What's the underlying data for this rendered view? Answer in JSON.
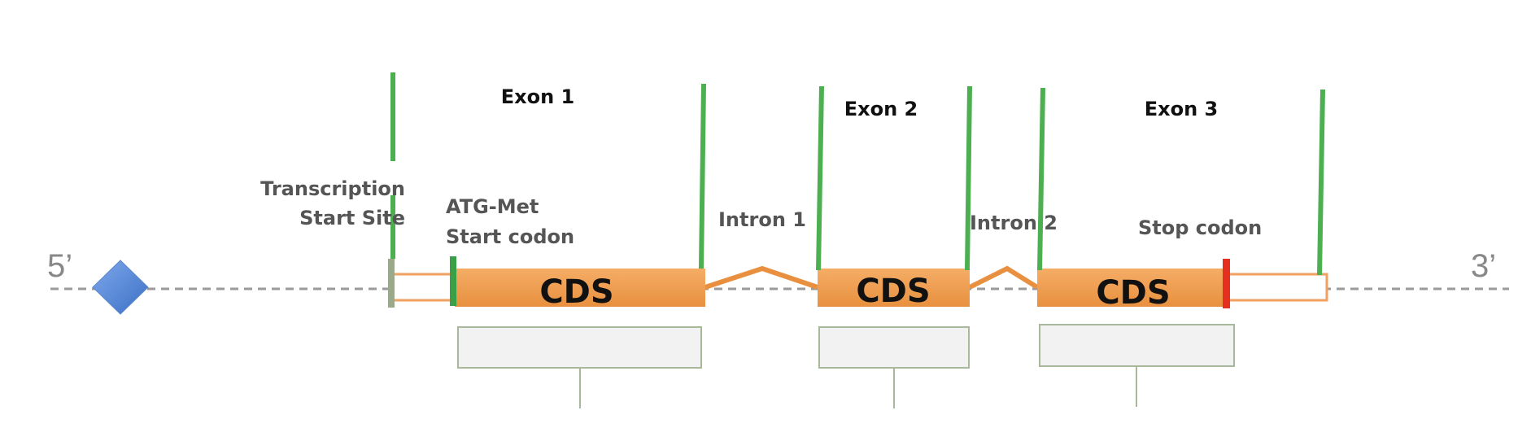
{
  "diagram": {
    "five_prime": "5’",
    "three_prime": "3’",
    "exons": [
      {
        "label": "Exon 1",
        "cds_label": "CDS"
      },
      {
        "label": "Exon 2",
        "cds_label": "CDS"
      },
      {
        "label": "Exon 3",
        "cds_label": "CDS"
      }
    ],
    "introns": [
      "Intron 1",
      "Intron 2"
    ],
    "tss_line1": "Transcription",
    "tss_line2": "Start Site",
    "start_line1": "ATG-Met",
    "start_line2": "Start codon",
    "stop_label": "Stop codon",
    "promoter_icon": "diamond-icon",
    "colors": {
      "cds_fill": "#f2a65e",
      "cds_dark": "#e88b3a",
      "boundary_line": "#4caf50",
      "stop_codon": "#e53020",
      "promoter": "#4a7fd4",
      "tss_bar": "#9aa98a",
      "dashed_line": "#9a9a9a"
    }
  }
}
